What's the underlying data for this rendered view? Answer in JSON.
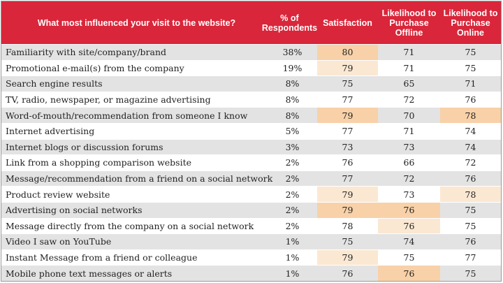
{
  "chart_data": {
    "type": "table",
    "columns": [
      "What most influenced your visit to the website?",
      "% of Respondents",
      "Satisfaction",
      "Likelihood to Purchase Offline",
      "Likelihood to Purchase Online"
    ],
    "rows": [
      {
        "label": "Familiarity with site/company/brand",
        "pct": "38%",
        "satisfaction": "80",
        "offline": "71",
        "online": "75",
        "highlight": {
          "satisfaction": "strong"
        }
      },
      {
        "label": "Promotional e-mail(s) from the company",
        "pct": "19%",
        "satisfaction": "79",
        "offline": "71",
        "online": "75",
        "highlight": {
          "satisfaction": "light"
        }
      },
      {
        "label": "Search engine results",
        "pct": "8%",
        "satisfaction": "75",
        "offline": "65",
        "online": "71",
        "highlight": {}
      },
      {
        "label": "TV, radio, newspaper, or magazine advertising",
        "pct": "8%",
        "satisfaction": "77",
        "offline": "72",
        "online": "76",
        "highlight": {}
      },
      {
        "label": "Word-of-mouth/recommendation from someone I know",
        "pct": "8%",
        "satisfaction": "79",
        "offline": "70",
        "online": "78",
        "highlight": {
          "satisfaction": "strong",
          "online": "strong"
        }
      },
      {
        "label": "Internet advertising",
        "pct": "5%",
        "satisfaction": "77",
        "offline": "71",
        "online": "74",
        "highlight": {}
      },
      {
        "label": "Internet blogs or discussion forums",
        "pct": "3%",
        "satisfaction": "73",
        "offline": "73",
        "online": "74",
        "highlight": {}
      },
      {
        "label": "Link from a shopping comparison website",
        "pct": "2%",
        "satisfaction": "76",
        "offline": "66",
        "online": "72",
        "highlight": {}
      },
      {
        "label": "Message/recommendation from a friend on a social network",
        "pct": "2%",
        "satisfaction": "77",
        "offline": "72",
        "online": "76",
        "highlight": {}
      },
      {
        "label": "Product review website",
        "pct": "2%",
        "satisfaction": "79",
        "offline": "73",
        "online": "78",
        "highlight": {
          "satisfaction": "light",
          "online": "light"
        }
      },
      {
        "label": "Advertising on social networks",
        "pct": "2%",
        "satisfaction": "79",
        "offline": "76",
        "online": "75",
        "highlight": {
          "satisfaction": "strong",
          "offline": "strong"
        }
      },
      {
        "label": "Message directly from the company on a social network",
        "pct": "2%",
        "satisfaction": "78",
        "offline": "76",
        "online": "75",
        "highlight": {
          "offline": "light"
        }
      },
      {
        "label": "Video I saw on YouTube",
        "pct": "1%",
        "satisfaction": "75",
        "offline": "74",
        "online": "76",
        "highlight": {}
      },
      {
        "label": "Instant Message from a friend or colleague",
        "pct": "1%",
        "satisfaction": "79",
        "offline": "75",
        "online": "77",
        "highlight": {
          "satisfaction": "light"
        }
      },
      {
        "label": "Mobile phone text messages or alerts",
        "pct": "1%",
        "satisfaction": "76",
        "offline": "76",
        "online": "75",
        "highlight": {
          "offline": "strong"
        }
      }
    ],
    "colors": {
      "header_background": "#d9263a",
      "header_text": "#ffffff",
      "stripe": "#e3e3e3",
      "highlight_strong": "#f8d1a8",
      "highlight_light": "#fbe8d3"
    }
  }
}
